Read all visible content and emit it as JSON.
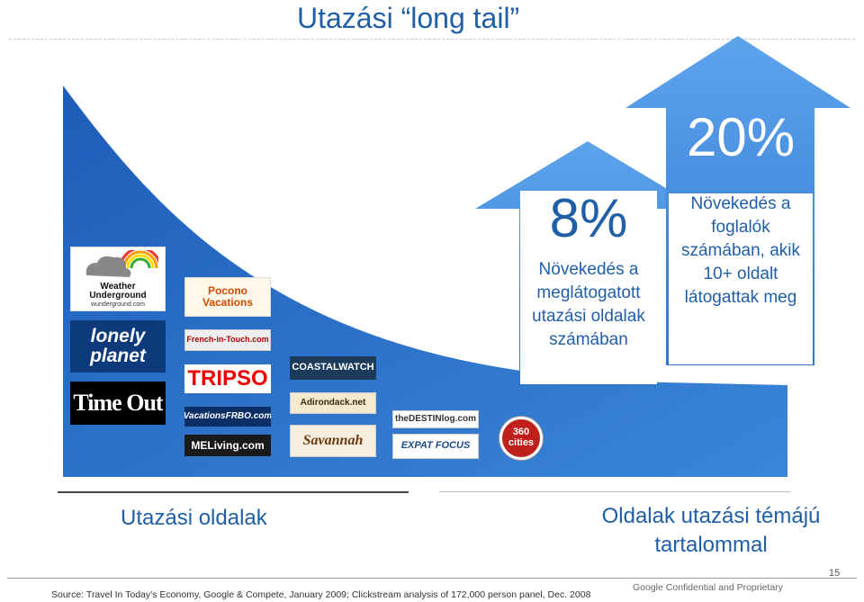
{
  "slide": {
    "title": "Utazási “long tail”",
    "label_left": "Utazási oldalak",
    "label_right": "Oldalak utazási témájú tartalommal",
    "source": "Source: Travel In Today’s Economy, Google & Compete, January 2009; Clickstream analysis of 172,000 person panel, Dec. 2008",
    "confidential": "Google Confidential and Proprietary",
    "page_number": "15"
  },
  "arrows": {
    "small": {
      "percent": "8%",
      "text": "Növekedés a meglátogatott utazási oldalak számában"
    },
    "large": {
      "percent": "20%",
      "text": "Növekedés a foglalók számában, akik 10+ oldalt látogattak meg"
    }
  },
  "logos": [
    {
      "id": "weather-underground",
      "text": "Weather Underground",
      "sub": "wunderground.com"
    },
    {
      "id": "lonely-planet",
      "text": "lonely planet"
    },
    {
      "id": "time-out",
      "text": "Time Out"
    },
    {
      "id": "pocono-vacations",
      "text": "Pocono Vacations"
    },
    {
      "id": "french-in-touch",
      "text": "French-in-Touch.com"
    },
    {
      "id": "tripso",
      "text": "TRIPSO"
    },
    {
      "id": "vacations-frbo",
      "text": "VacationsFRBO.com"
    },
    {
      "id": "meliving",
      "text": "MELiving.com"
    },
    {
      "id": "coastalwatch",
      "text": "COASTALWATCH"
    },
    {
      "id": "adirondack",
      "text": "Adirondack.net"
    },
    {
      "id": "savannah",
      "text": "Savannah"
    },
    {
      "id": "destinlog",
      "text": "theDESTINlog.com"
    },
    {
      "id": "expat-focus",
      "text": "EXPAT FOCUS"
    },
    {
      "id": "360-cities",
      "text": "360 cities"
    }
  ],
  "colors": {
    "curve": "#2f6fc6",
    "arrow": "#4a90e0",
    "text_blue": "#1f5fa8"
  }
}
